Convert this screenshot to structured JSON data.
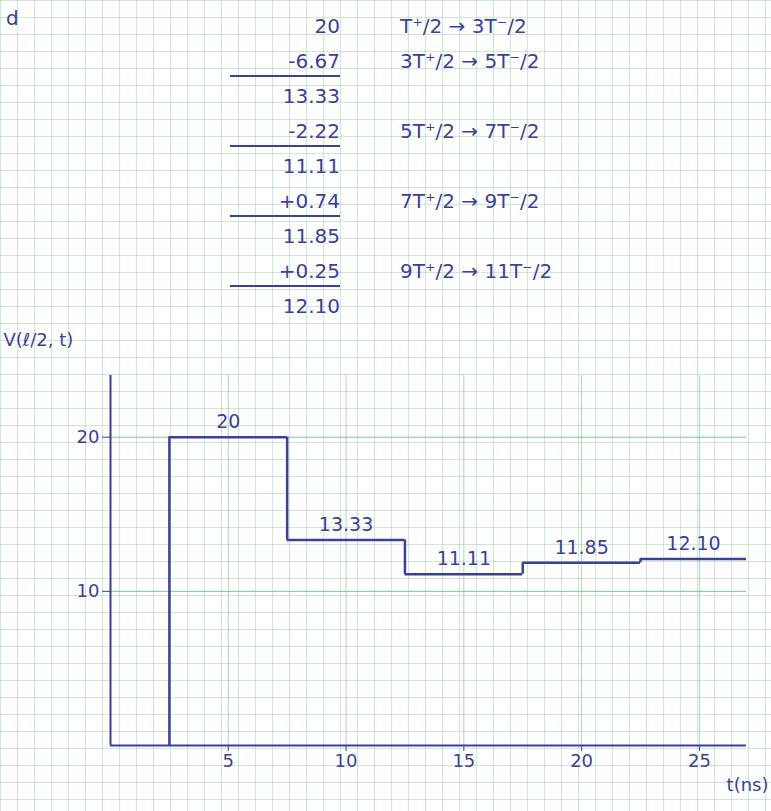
{
  "chart_data": {
    "type": "step",
    "xlabel": "t(ns)",
    "ylabel": "V(ℓ/2, t)",
    "x": [
      2.5,
      7.5,
      12.5,
      17.5,
      22.5
    ],
    "values": [
      20,
      13.33,
      11.11,
      11.85,
      12.1
    ],
    "value_labels": [
      "20",
      "13.33",
      "11.11",
      "11.85",
      "12.10"
    ],
    "data_labels": true,
    "color": "#3b3f9e",
    "xlim": [
      0,
      27
    ],
    "xticks": [
      5,
      10,
      15,
      20,
      25
    ],
    "ylim": [
      0,
      24
    ],
    "yticks": [
      10,
      20
    ],
    "grid": true,
    "annotations": {
      "corner": "d",
      "steps": [
        {
          "text": "20",
          "interval": "T⁺/2 → 3T⁻/2"
        },
        {
          "text": "-6.67",
          "interval": "3T⁺/2 → 5T⁻/2"
        },
        {
          "text": "13.33"
        },
        {
          "text": "-2.22",
          "interval": "5T⁺/2 → 7T⁻/2"
        },
        {
          "text": "11.11"
        },
        {
          "text": "+0.74",
          "interval": "7T⁺/2 → 9T⁻/2"
        },
        {
          "text": "11.85"
        },
        {
          "text": "+0.25",
          "interval": "9T⁺/2 → 11T⁻/2"
        },
        {
          "text": "12.10"
        }
      ]
    }
  }
}
